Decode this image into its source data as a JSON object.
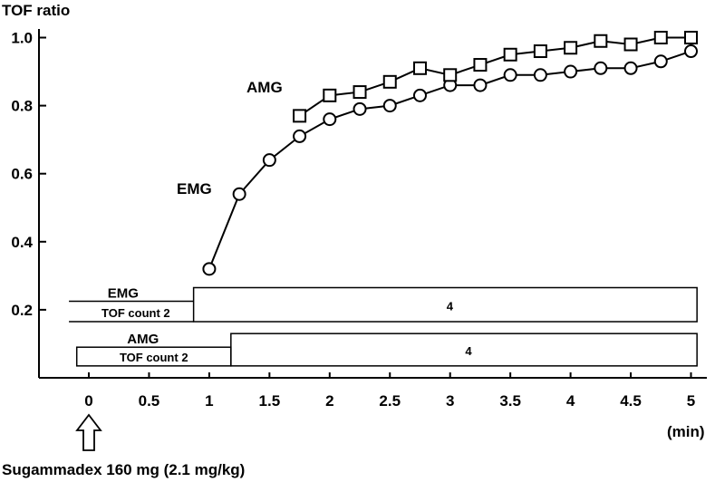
{
  "chart_data": {
    "type": "line",
    "ylabel": "TOF ratio",
    "xunit": "(min)",
    "ylim": [
      0,
      1.05
    ],
    "xlim": [
      -0.2,
      5.1
    ],
    "yticks": [
      "0.2",
      "0.4",
      "0.6",
      "0.8",
      "1.0"
    ],
    "ytick_values": [
      0.2,
      0.4,
      0.6,
      0.8,
      1.0
    ],
    "xticks": [
      "0",
      "0.5",
      "1",
      "1.5",
      "2",
      "2.5",
      "3",
      "3.5",
      "4",
      "4.5",
      "5"
    ],
    "xtick_values": [
      0,
      0.5,
      1,
      1.5,
      2,
      2.5,
      3,
      3.5,
      4,
      4.5,
      5
    ],
    "series": [
      {
        "name": "EMG",
        "marker": "circle",
        "x": [
          1,
          1.25,
          1.5,
          1.75,
          2,
          2.25,
          2.5,
          2.75,
          3,
          3.25,
          3.5,
          3.75,
          4,
          4.25,
          4.5,
          4.75,
          5
        ],
        "y": [
          0.32,
          0.54,
          0.64,
          0.71,
          0.76,
          0.79,
          0.8,
          0.83,
          0.86,
          0.86,
          0.89,
          0.89,
          0.9,
          0.91,
          0.91,
          0.93,
          0.96
        ]
      },
      {
        "name": "AMG",
        "marker": "square",
        "x": [
          1.75,
          2,
          2.25,
          2.5,
          2.75,
          3,
          3.25,
          3.5,
          3.75,
          4,
          4.25,
          4.5,
          4.75,
          5
        ],
        "y": [
          0.77,
          0.83,
          0.84,
          0.87,
          0.91,
          0.89,
          0.92,
          0.95,
          0.96,
          0.97,
          0.99,
          0.98,
          1.0,
          1.0
        ]
      }
    ],
    "tof_count_bars": [
      {
        "name": "EMG",
        "label": "EMG",
        "count_text": "TOF count 2",
        "x_start": -0.15,
        "x_change": 0.87,
        "x_end": 5.05,
        "after_text": "4",
        "y_top": 0.265,
        "y_mid": 0.225,
        "y_bottom": 0.165
      },
      {
        "name": "AMG",
        "label": "AMG",
        "count_text": "TOF count  2",
        "x_start": -0.1,
        "x_change": 1.18,
        "x_end": 5.05,
        "after_text": "4",
        "y_top": 0.13,
        "y_mid": 0.09,
        "y_bottom": 0.035
      }
    ],
    "annotation": "Sugammadex 160 mg (2.1 mg/kg)",
    "annotation_x": 0
  }
}
